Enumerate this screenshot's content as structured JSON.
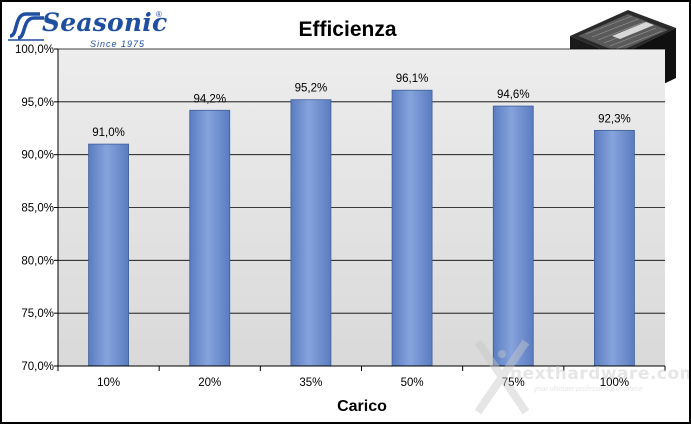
{
  "brand": {
    "logo_text": "Seasonic",
    "registered": "®",
    "since": "Since 1975"
  },
  "watermark": {
    "name": "nexthardware.com",
    "tagline": "your ultimate professional resource"
  },
  "chart_data": {
    "type": "bar",
    "title": "Efficienza",
    "xlabel": "Carico",
    "ylabel": "",
    "categories": [
      "10%",
      "20%",
      "35%",
      "50%",
      "75%",
      "100%"
    ],
    "values": [
      91.0,
      94.2,
      95.2,
      96.1,
      94.6,
      92.3
    ],
    "value_labels": [
      "91,0%",
      "94,2%",
      "95,2%",
      "96,1%",
      "94,6%",
      "92,3%"
    ],
    "ylim": [
      70,
      100
    ],
    "yticks": [
      70,
      75,
      80,
      85,
      90,
      95,
      100
    ],
    "ytick_labels": [
      "70,0%",
      "75,0%",
      "80,0%",
      "85,0%",
      "90,0%",
      "95,0%",
      "100,0%"
    ],
    "grid": true,
    "legend": "none",
    "bar_color": "#6f8fcc",
    "bar_edge_color": "#3f5f99",
    "plot_background": "#e4e4e4"
  }
}
